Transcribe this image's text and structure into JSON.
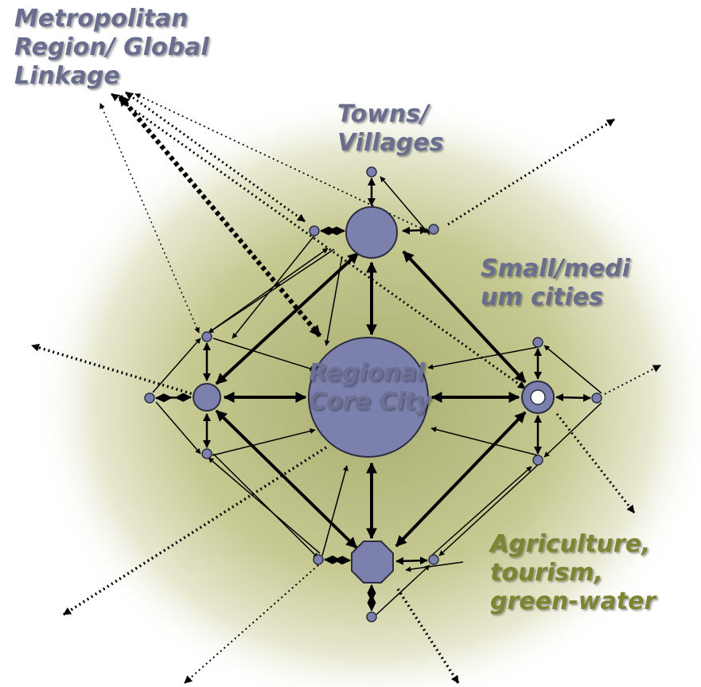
{
  "labels": {
    "metro": [
      "Metropolitan",
      "Region/  Global",
      "Linkage"
    ],
    "towns": [
      "Towns/",
      "Villages"
    ],
    "small": [
      "Small/medi",
      "um cities"
    ],
    "core": [
      "Regional",
      "Core City"
    ],
    "agri": [
      "Agriculture,",
      "tourism,",
      "green-water"
    ]
  },
  "colors": {
    "node_fill": "#7b81ac",
    "node_stroke": "#2b2d40",
    "label_slate": "#6a6e8e",
    "label_olive": "#7d8432",
    "background_glow": "#bfc38a"
  },
  "node_shapes": {
    "core": "circle",
    "towns": "circle",
    "left_city": "circle",
    "small_city": "ring",
    "agriculture": "octagon"
  }
}
